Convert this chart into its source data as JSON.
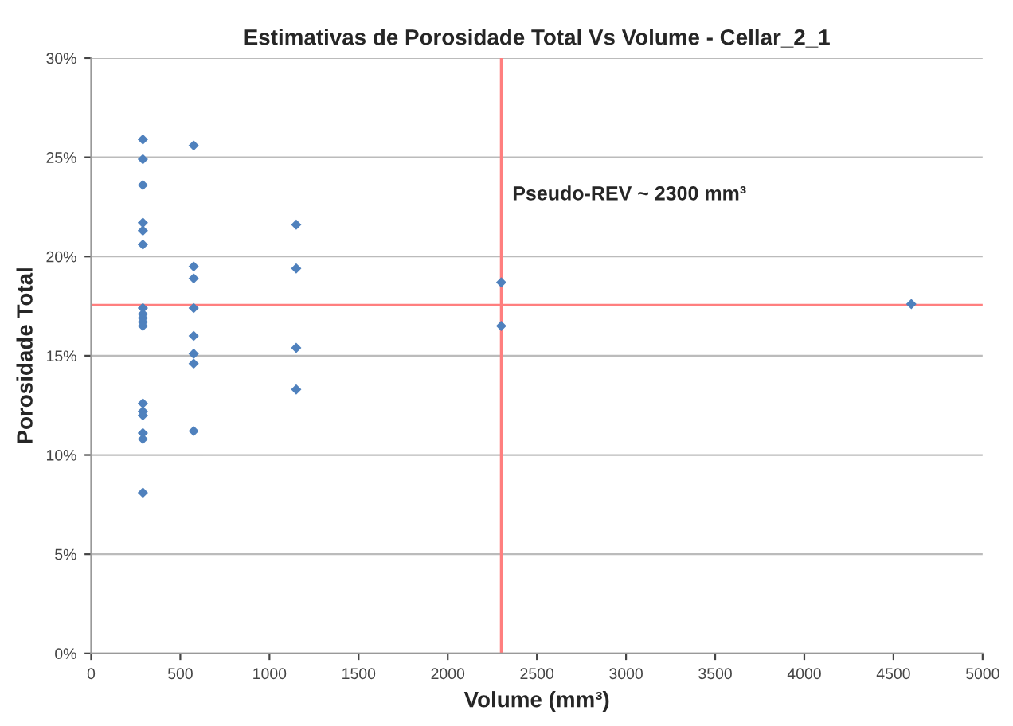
{
  "chart_data": {
    "type": "scatter",
    "title": "Estimativas de Porosidade Total Vs Volume - Cellar_2_1",
    "xlabel": "Volume (mm³)",
    "ylabel": "Porosidade Total",
    "x": [
      290,
      290,
      290,
      290,
      290,
      290,
      290,
      290,
      290,
      290,
      290,
      290,
      290,
      290,
      290,
      290,
      290,
      575,
      575,
      575,
      575,
      575,
      575,
      575,
      575,
      1150,
      1150,
      1150,
      1150,
      2300,
      2300,
      4600
    ],
    "series": [
      {
        "color": "#4f81bd",
        "values": [
          25.9,
          24.9,
          23.6,
          21.7,
          21.3,
          20.6,
          17.4,
          17.1,
          16.9,
          16.7,
          16.5,
          12.6,
          12.2,
          12.0,
          11.1,
          10.8,
          8.1,
          25.6,
          19.5,
          18.9,
          17.4,
          16.0,
          15.1,
          14.6,
          11.2,
          21.6,
          19.4,
          15.4,
          13.3,
          18.7,
          16.5,
          17.6
        ]
      }
    ],
    "marker": "diamond",
    "grid": "y",
    "xlim": [
      0,
      5000
    ],
    "xticks": [
      0,
      500,
      1000,
      1500,
      2000,
      2500,
      3000,
      3500,
      4000,
      4500,
      5000
    ],
    "ylim": [
      0,
      30
    ],
    "yticks": [
      {
        "value": 0,
        "label": "0%"
      },
      {
        "value": 5,
        "label": "5%"
      },
      {
        "value": 10,
        "label": "10%"
      },
      {
        "value": 15,
        "label": "15%"
      },
      {
        "value": 20,
        "label": "20%"
      },
      {
        "value": 25,
        "label": "25%"
      },
      {
        "value": 30,
        "label": "30%"
      }
    ],
    "ref_lines": [
      {
        "axis": "x",
        "value": 2300,
        "label": "Pseudo-REV ~ 2300 mm³",
        "color": "#ff7f7f"
      },
      {
        "axis": "y",
        "value": 17.55,
        "color": "#ff7f7f"
      }
    ]
  }
}
